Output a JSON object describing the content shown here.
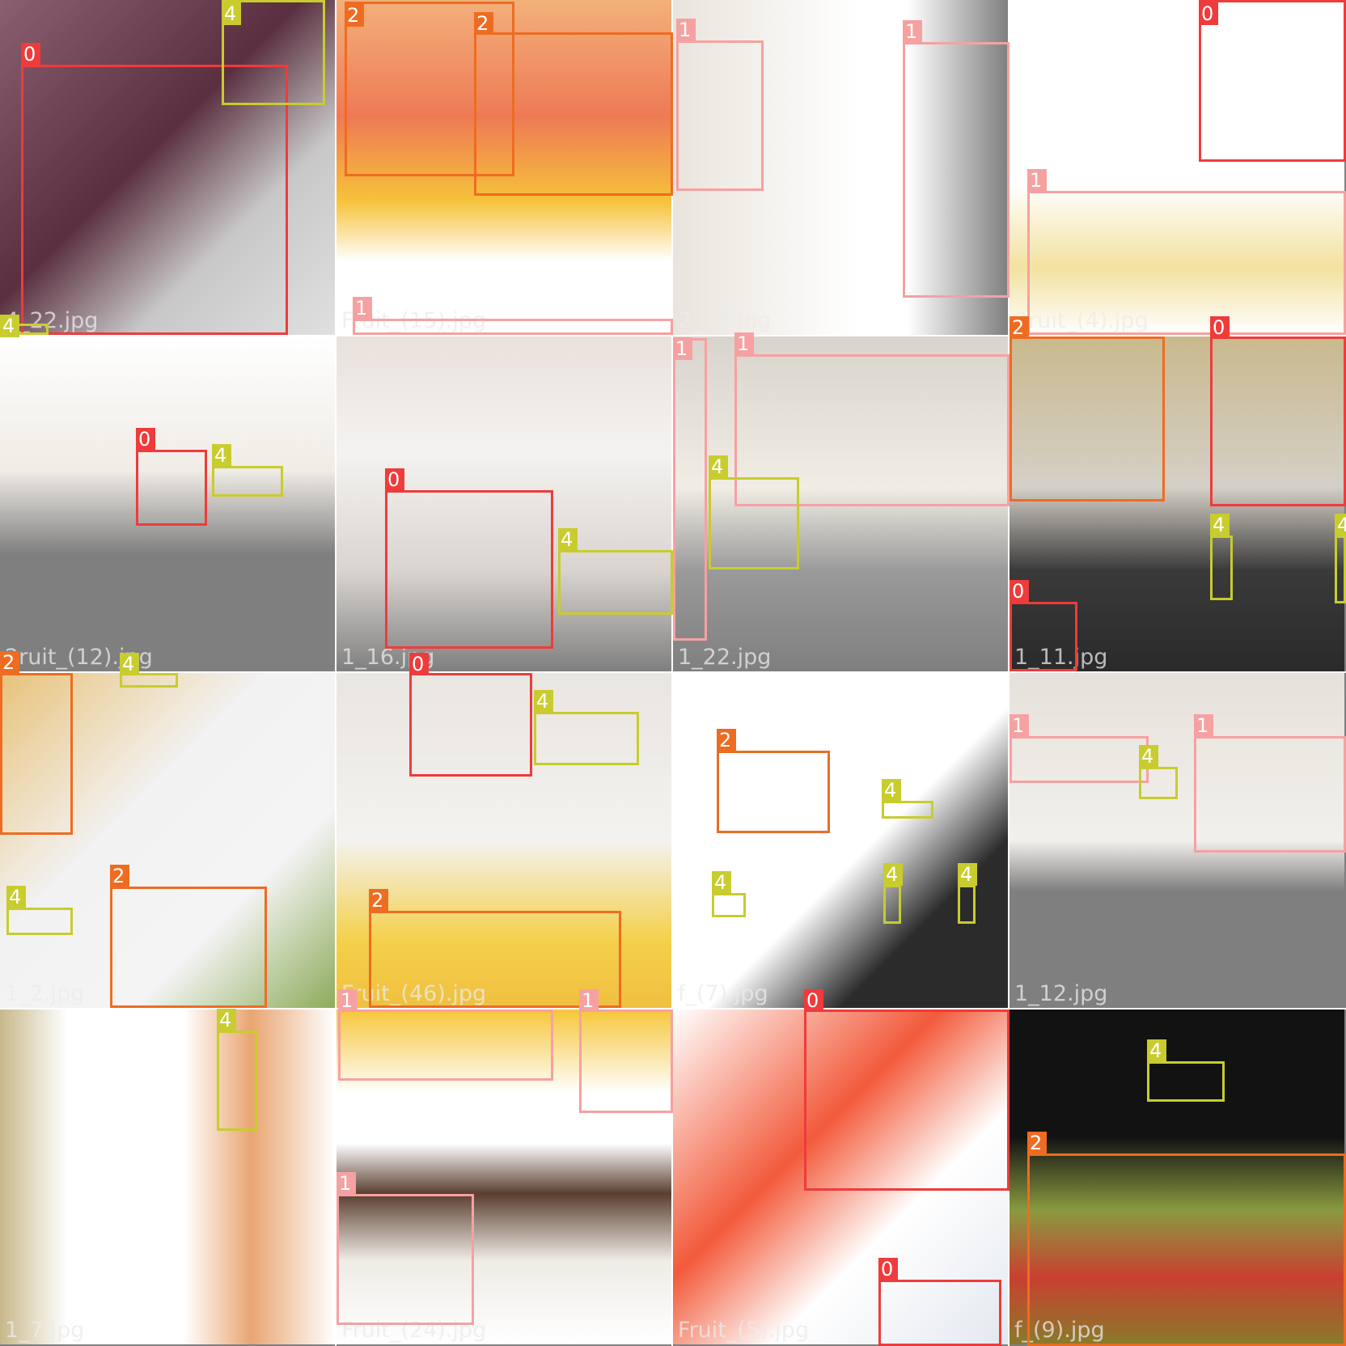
{
  "classes": {
    "0": {
      "label": "0",
      "color": "#ef3b3b"
    },
    "1": {
      "label": "1",
      "color": "#f6a1a1"
    },
    "2": {
      "label": "2",
      "color": "#ee6c22"
    },
    "4": {
      "label": "4",
      "color": "#c8cc2e"
    }
  },
  "tiles": [
    {
      "filename": "4_22.jpg",
      "background": "linear-gradient(135deg,#8a6070 0%,#5a2f3f 45%,#c8c8c8 70%,#e0e0e0 100%)"
    },
    {
      "filename": "Fruit_(15).jpg",
      "background": "linear-gradient(180deg,#f3b07a 0%,#ee7a55 35%,#f6c23a 60%,#ffffff 78%,#ffffff 100%)"
    },
    {
      "filename": "2_18.jpg",
      "background": "linear-gradient(90deg,#e9e4dc 0%,#ffffff 55%,#ffffff 70%,#7f7f7f 100%)"
    },
    {
      "filename": "2ruit_(4).jpg",
      "background": "linear-gradient(180deg,#ffffff 0%,#ffffff 55%,#f2e1a0 80%,#ffffff 100%)"
    },
    {
      "filename": "2ruit_(12).jpg",
      "background": "linear-gradient(180deg,#ffffff 0%,#f0ece6 40%,#7f7f7f 65%,#7f7f7f 100%)"
    },
    {
      "filename": "1_16.jpg",
      "background": "linear-gradient(180deg,#e9e2dc 0%,#f4f2f0 35%,#d9d4d0 70%,#7f7f7f 100%)"
    },
    {
      "filename": "1_22.jpg",
      "background": "linear-gradient(180deg,#d8d3cc 0%,#f1ede4 45%,#9a9a9a 70%,#7f7f7f 100%)"
    },
    {
      "filename": "1_11.jpg",
      "background": "linear-gradient(180deg,#c9b98d 0%,#d5d0c7 45%,#3a3a3a 70%,#2a2a2a 100%)"
    },
    {
      "filename": "1_2.jpg",
      "background": "linear-gradient(135deg,#e8c27a 0%,#f2f2f2 40%,#f4f4f4 70%,#8cab5a 100%)"
    },
    {
      "filename": "Fruit_(46).jpg",
      "background": "linear-gradient(180deg,#e9e5e0 0%,#f4f2ef 50%,#f4d04a 80%,#f0c040 100%)"
    },
    {
      "filename": "f_(7).jpg",
      "background": "linear-gradient(135deg,#ffffff 0%,#ffffff 55%,#2b2b2b 75%,#2b2b2b 100%)"
    },
    {
      "filename": "1_12.jpg",
      "background": "linear-gradient(180deg,#e6e1da 0%,#f2f0ec 50%,#7f7f7f 65%,#7f7f7f 100%)"
    },
    {
      "filename": "1_7.jpg",
      "background": "linear-gradient(90deg,#c7b88a 0%,#ffffff 20%,#ffffff 55%,#e9a572 75%,#ffffff 100%)"
    },
    {
      "filename": "Fruit_(24).jpg",
      "background": "linear-gradient(180deg,#f6c63a 0%,#ffffff 25%,#ffffff 40%,#5a3e30 55%,#efece6 75%,#ffffff 100%)"
    },
    {
      "filename": "Fruit_(5).jpg",
      "background": "linear-gradient(135deg,#ffffff 0%,#f25a3a 40%,#ffffff 65%,#e3e8ee 100%)"
    },
    {
      "filename": "f_(9).jpg",
      "background": "linear-gradient(180deg,#121212 0%,#121212 38%,#8a9a40 60%,#c94030 80%,#8a7a2a 100%)"
    }
  ]
}
